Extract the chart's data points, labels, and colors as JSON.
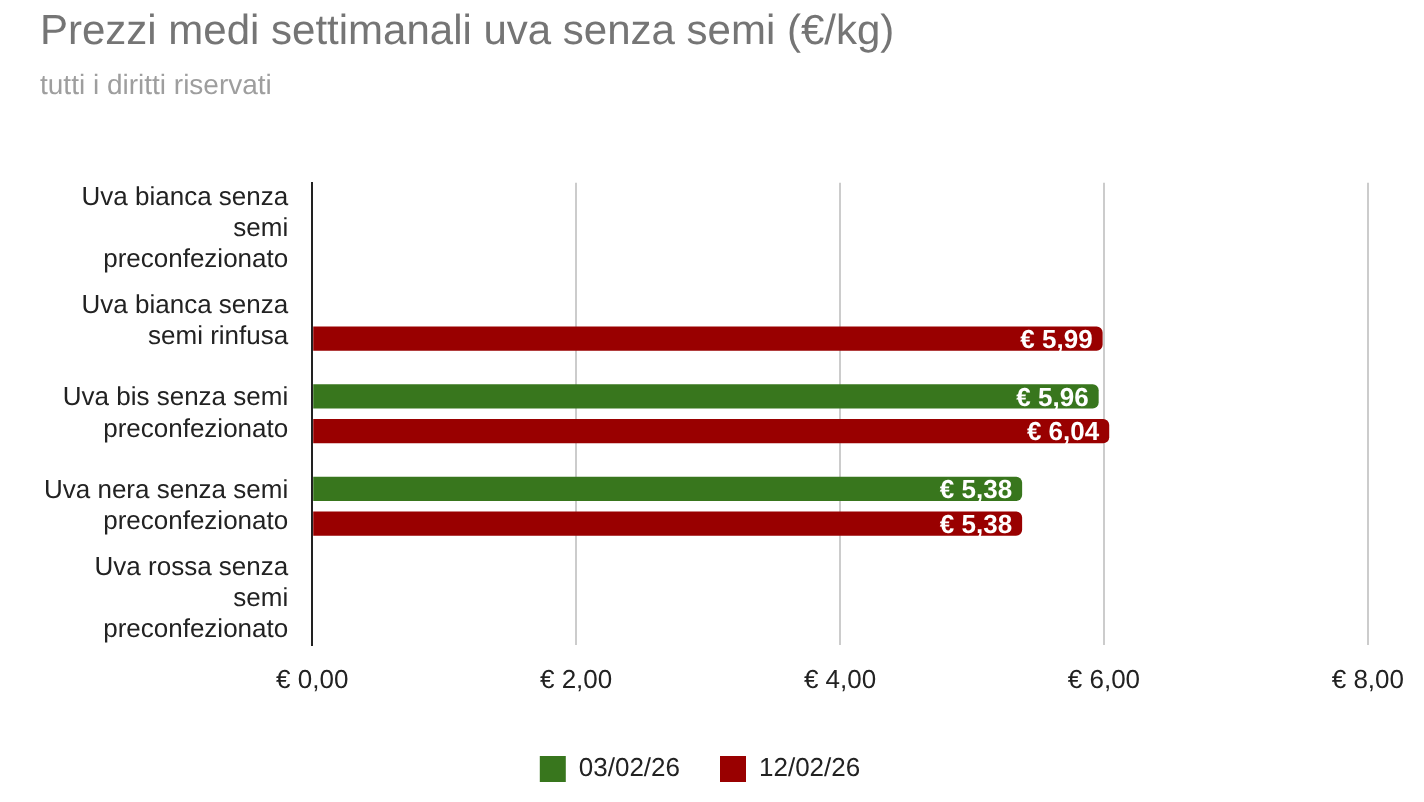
{
  "chart_data": {
    "type": "bar",
    "orientation": "horizontal",
    "title": "Prezzi medi settimanali uva senza semi (€/kg)",
    "subtitle": "tutti i diritti riservati",
    "categories": [
      "Uva bianca senza semi preconfezionato",
      "Uva bianca senza semi rinfusa",
      "Uva bis senza semi preconfezionato",
      "Uva nera senza semi preconfezionato",
      "Uva rossa senza semi preconfezionato"
    ],
    "series": [
      {
        "name": "03/02/26",
        "color": "#38761d",
        "values": [
          null,
          null,
          5.96,
          5.38,
          null
        ],
        "value_labels": [
          null,
          null,
          "€ 5,96",
          "€ 5,38",
          null
        ]
      },
      {
        "name": "12/02/26",
        "color": "#990000",
        "values": [
          null,
          5.99,
          6.04,
          5.38,
          null
        ],
        "value_labels": [
          null,
          "€ 5,99",
          "€ 6,04",
          "€ 5,38",
          null
        ]
      }
    ],
    "xlim": [
      0,
      8
    ],
    "xticks": [
      {
        "value": 0,
        "label": "€ 0,00"
      },
      {
        "value": 2,
        "label": "€ 2,00"
      },
      {
        "value": 4,
        "label": "€ 4,00"
      },
      {
        "value": 6,
        "label": "€ 6,00"
      },
      {
        "value": 8,
        "label": "€ 8,00"
      }
    ],
    "grid": "x",
    "legend": "bottom"
  }
}
